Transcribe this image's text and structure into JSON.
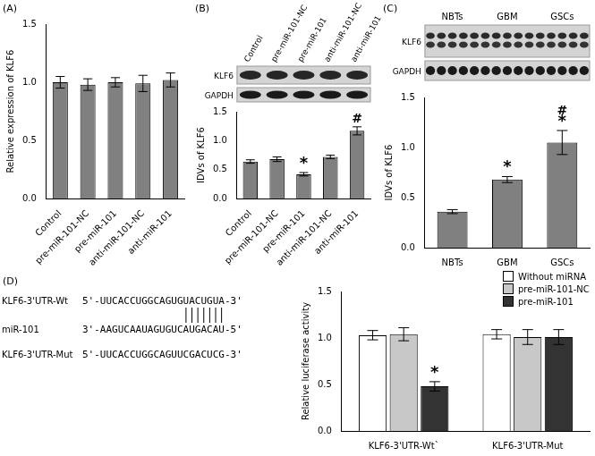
{
  "chart_data": [
    {
      "panel": "(A)",
      "type": "bar",
      "categories": [
        "Control",
        "pre-miR-101-NC",
        "pre-miR-101",
        "anti-miR-101-NC",
        "anti-miR-101"
      ],
      "values": [
        1.0,
        0.98,
        1.0,
        0.99,
        1.02
      ],
      "errors": [
        0.05,
        0.05,
        0.04,
        0.07,
        0.06
      ],
      "y_label": "Relative expression of KLF6",
      "color": "#808080",
      "ylim": [
        0,
        1.5
      ],
      "yticks": [
        {
          "value": 0,
          "label": "0.0"
        },
        {
          "value": 0.5,
          "label": "0.5"
        },
        {
          "value": 1,
          "label": "1.0"
        },
        {
          "value": 1.5,
          "label": "1.5"
        }
      ],
      "grid": false
    },
    {
      "panel": "(B)",
      "type": "bar",
      "categories": [
        "Control",
        "pre-miR-101-NC",
        "pre-miR-101",
        "anti-miR-101-NC",
        "anti-miR-101"
      ],
      "values": [
        0.64,
        0.68,
        0.42,
        0.72,
        1.17
      ],
      "errors": [
        0.03,
        0.04,
        0.03,
        0.03,
        0.07
      ],
      "annotations": [
        [],
        [],
        [
          "*"
        ],
        [],
        [
          "#"
        ]
      ],
      "blot": {
        "rows": [
          "KLF6",
          "GAPDH"
        ]
      },
      "y_label": "IDVs of KLF6",
      "color": "#808080",
      "ylim": [
        0,
        1.5
      ],
      "yticks": [
        {
          "value": 0,
          "label": "0.0"
        },
        {
          "value": 0.5,
          "label": "0.5"
        },
        {
          "value": 1,
          "label": "1.0"
        },
        {
          "value": 1.5,
          "label": "1.5"
        }
      ],
      "grid": false
    },
    {
      "panel": "(C)",
      "type": "bar",
      "categories": [
        "NBTs",
        "GBM",
        "GSCs"
      ],
      "values": [
        0.36,
        0.68,
        1.05
      ],
      "errors": [
        0.02,
        0.03,
        0.12
      ],
      "annotations": [
        [],
        [
          "*"
        ],
        [
          "*",
          "#"
        ]
      ],
      "blot": {
        "rows": [
          "KLF6",
          "GAPDH"
        ]
      },
      "y_label": "IDVs of KLF6",
      "color": "#808080",
      "ylim": [
        0,
        1.5
      ],
      "yticks": [
        {
          "value": 0,
          "label": "0.0"
        },
        {
          "value": 0.5,
          "label": "0.5"
        },
        {
          "value": 1,
          "label": "1.0"
        },
        {
          "value": 1.5,
          "label": "1.5"
        }
      ],
      "grid": false
    },
    {
      "panel": "(D)",
      "type": "bar",
      "categories": [
        "KLF6-3'UTR-Wt`",
        "KLF6-3'UTR-Mut"
      ],
      "series": [
        {
          "name": "Without miRNA",
          "color": "#ffffff",
          "values": [
            1.03,
            1.04
          ],
          "errors": [
            0.05,
            0.05
          ]
        },
        {
          "name": "pre-miR-101-NC",
          "color": "#c8c8c8",
          "values": [
            1.04,
            1.01
          ],
          "errors": [
            0.07,
            0.08
          ]
        },
        {
          "name": "pre-miR-101",
          "color": "#333333",
          "values": [
            0.48,
            1.01
          ],
          "errors": [
            0.05,
            0.08
          ],
          "annotations": [
            [
              "*"
            ],
            []
          ]
        }
      ],
      "legend": "upper right",
      "y_label": "Relative luciferase activity",
      "ylim": [
        0,
        1.5
      ],
      "yticks": [
        {
          "value": 0,
          "label": "0.0"
        },
        {
          "value": 0.5,
          "label": "0.5"
        },
        {
          "value": 1,
          "label": "1.0"
        },
        {
          "value": 1.5,
          "label": "1.5"
        }
      ],
      "grid": false,
      "sequence_alignment": [
        {
          "name": "KLF6-3'UTR-Wt",
          "sequence": "5'-UUCACCUGGCAGUGUACUGUA-3'"
        },
        {
          "name": "miR-101",
          "sequence": "3'-AAGUCAAUAGUGUCAUGACAU-5'"
        },
        {
          "name": "KLF6-3'UTR-Mut",
          "sequence": "5'-UUCACCUGGCAGUUCGACUCG-3'"
        }
      ]
    }
  ]
}
